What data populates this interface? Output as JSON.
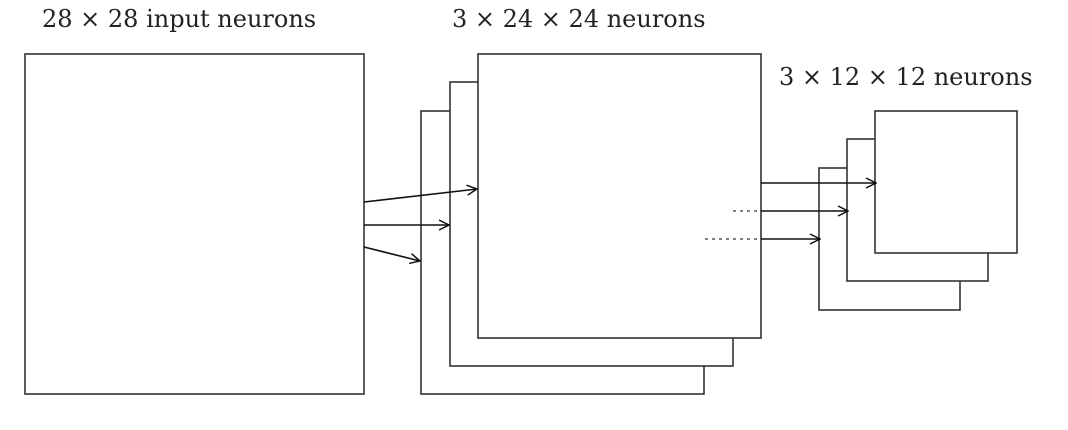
{
  "labels": {
    "input": "28 × 28 input neurons",
    "conv": "3 × 24 × 24 neurons",
    "pool": "3 × 12 × 12 neurons"
  },
  "colors": {
    "stroke": "#333333",
    "arrow": "#111111",
    "text": "#222222"
  }
}
